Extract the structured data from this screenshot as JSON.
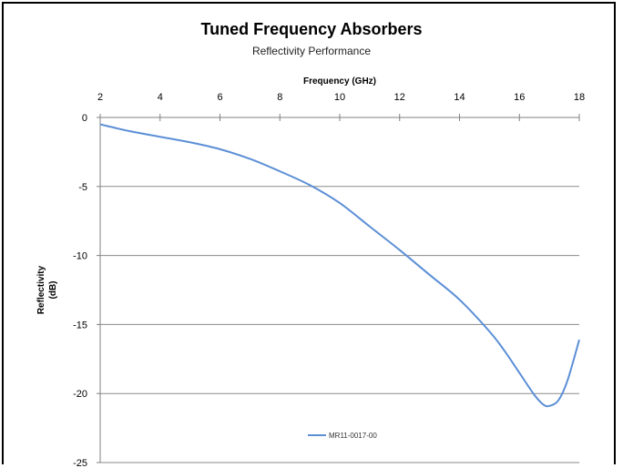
{
  "chart_data": {
    "type": "line",
    "title": "Tuned Frequency Absorbers",
    "subtitle": "Reflectivity Performance",
    "xlabel": "Frequency (GHz)",
    "ylabel_line1": "Reflectivity",
    "ylabel_line2": "(dB)",
    "x_axis_position": "top",
    "xlim": [
      2,
      18
    ],
    "ylim": [
      -25,
      0
    ],
    "xticks": [
      2,
      4,
      6,
      8,
      10,
      12,
      14,
      16,
      18
    ],
    "yticks": [
      0,
      -5,
      -10,
      -15,
      -20,
      -25
    ],
    "grid": "horizontal",
    "legend_position": "bottom-center",
    "series": [
      {
        "name": "MR11-0017-00",
        "color": "#5b8fd6",
        "x": [
          2,
          3,
          4,
          5,
          6,
          7,
          8,
          9,
          10,
          11,
          12,
          13,
          14,
          15,
          15.5,
          16,
          16.5,
          16.8,
          17,
          17.3,
          17.6,
          18
        ],
        "y": [
          -0.5,
          -1.0,
          -1.4,
          -1.8,
          -2.3,
          -3.0,
          -3.9,
          -4.9,
          -6.2,
          -7.9,
          -9.6,
          -11.4,
          -13.2,
          -15.5,
          -16.9,
          -18.5,
          -20.1,
          -20.8,
          -20.9,
          -20.5,
          -19.1,
          -16.1
        ]
      }
    ]
  }
}
